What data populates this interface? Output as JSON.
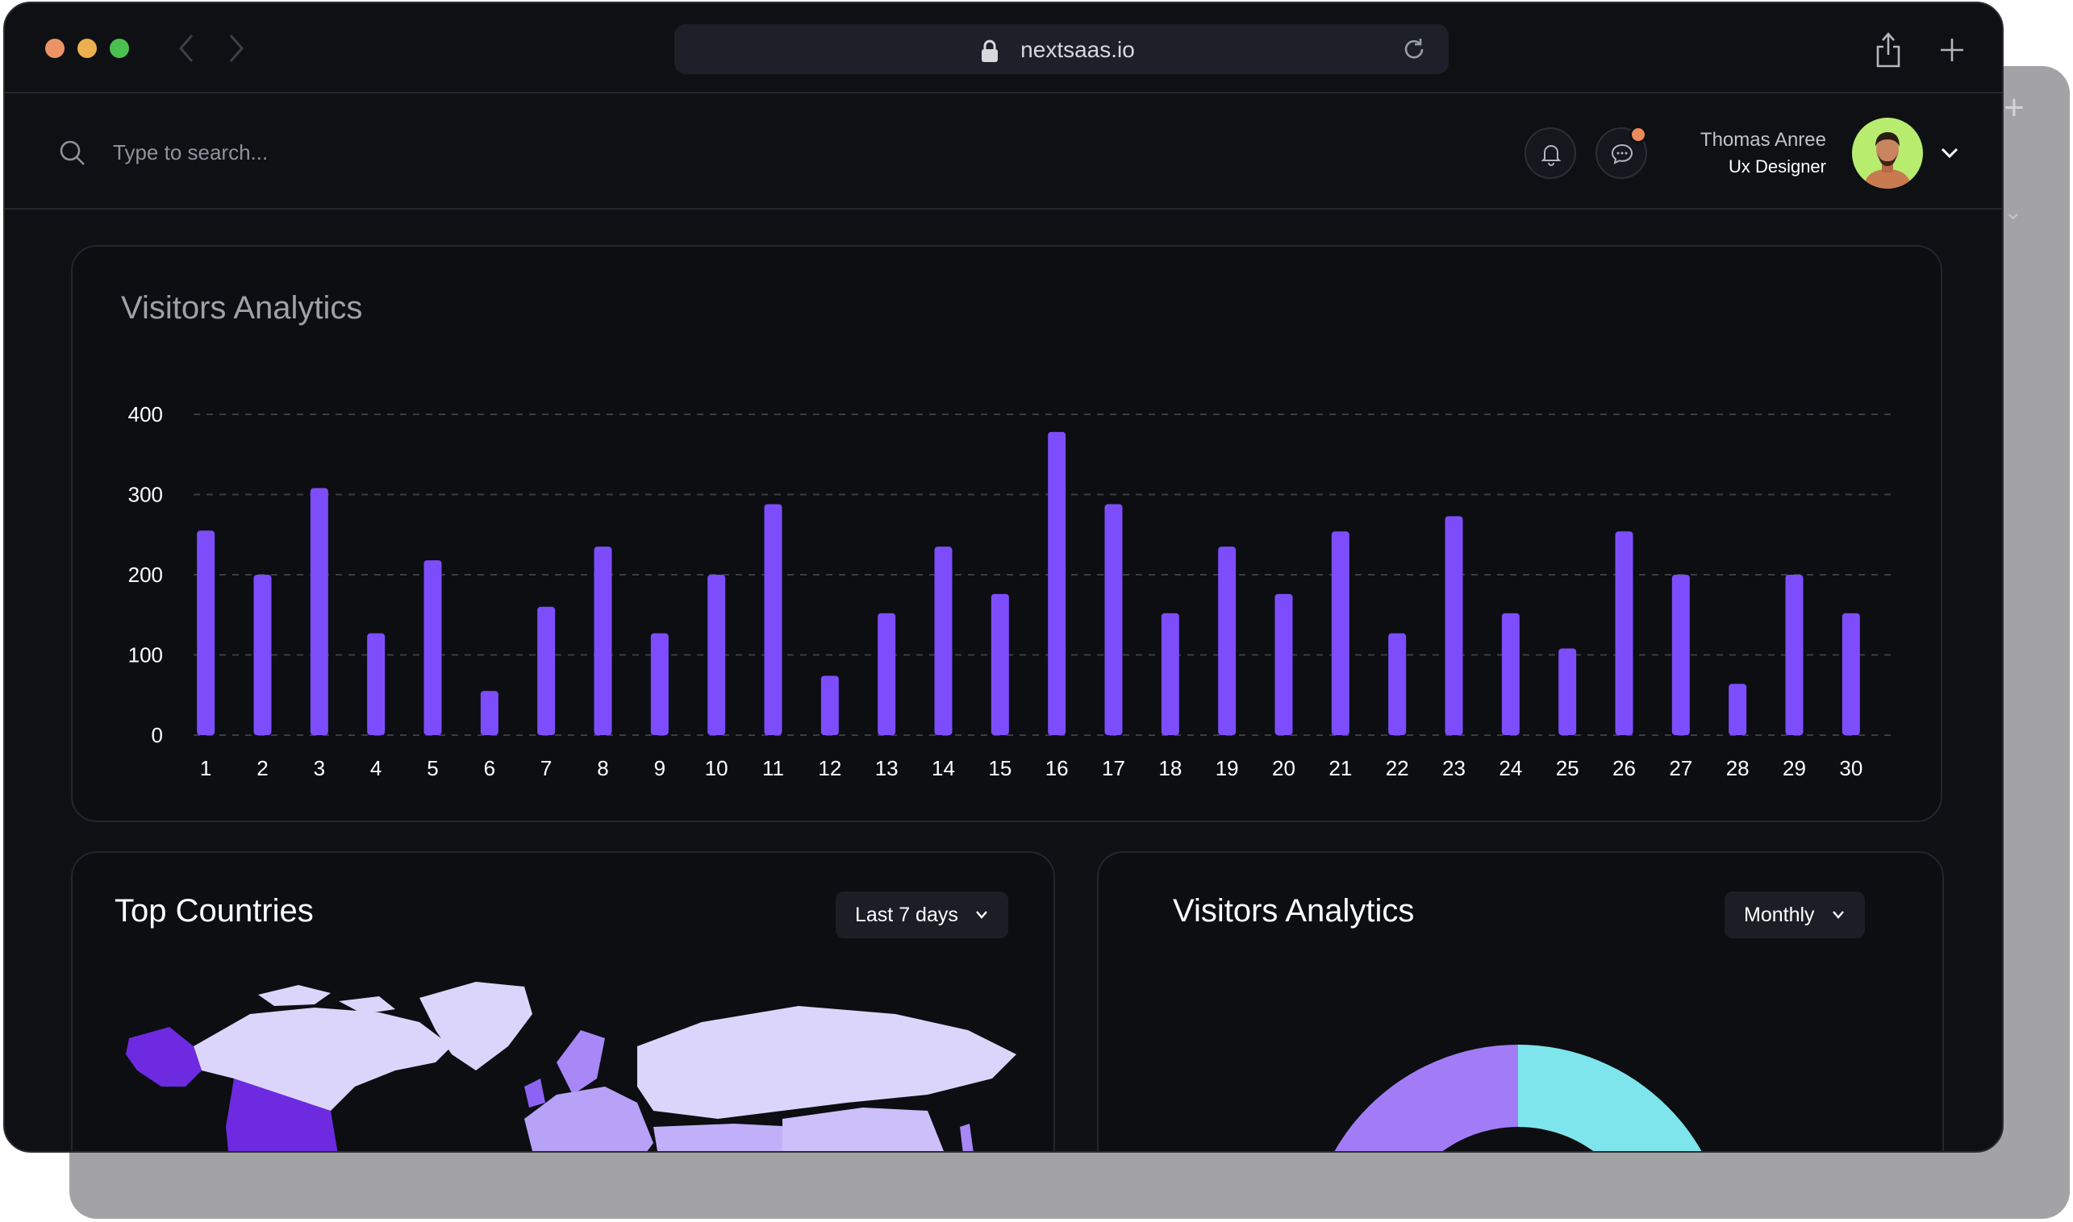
{
  "browser": {
    "url": "nextsaas.io",
    "traffic_lights": {
      "close": "#ec9466",
      "minimize": "#edaf4f",
      "maximize": "#4cc04f"
    }
  },
  "header": {
    "search_placeholder": "Type to search...",
    "user": {
      "name": "Thomas Anree",
      "role": "Ux Designer"
    }
  },
  "main_chart": {
    "title": "Visitors Analytics",
    "chart_data": {
      "type": "bar",
      "categories": [
        "1",
        "2",
        "3",
        "4",
        "5",
        "6",
        "7",
        "8",
        "9",
        "10",
        "11",
        "12",
        "13",
        "14",
        "15",
        "16",
        "17",
        "18",
        "19",
        "20",
        "21",
        "22",
        "23",
        "24",
        "25",
        "26",
        "27",
        "28",
        "29",
        "30"
      ],
      "values": [
        255,
        200,
        308,
        127,
        218,
        55,
        160,
        235,
        127,
        200,
        288,
        74,
        152,
        235,
        176,
        378,
        288,
        152,
        235,
        176,
        254,
        127,
        273,
        152,
        108,
        254,
        200,
        64,
        200,
        152
      ],
      "yticks": [
        0,
        100,
        200,
        300,
        400
      ],
      "ylim": [
        0,
        400
      ],
      "bar_color": "#7d4dfb",
      "grid": "dashed"
    }
  },
  "top_countries": {
    "title": "Top Countries",
    "filter_label": "Last 7 days"
  },
  "visitors_card": {
    "title": "Visitors Analytics",
    "filter_label": "Monthly",
    "donut_colors": [
      "#a27cf7",
      "#7ee5ec"
    ]
  },
  "colors": {
    "background": "#0e1014",
    "card": "#0c0e12",
    "accent": "#7d4dfb"
  }
}
